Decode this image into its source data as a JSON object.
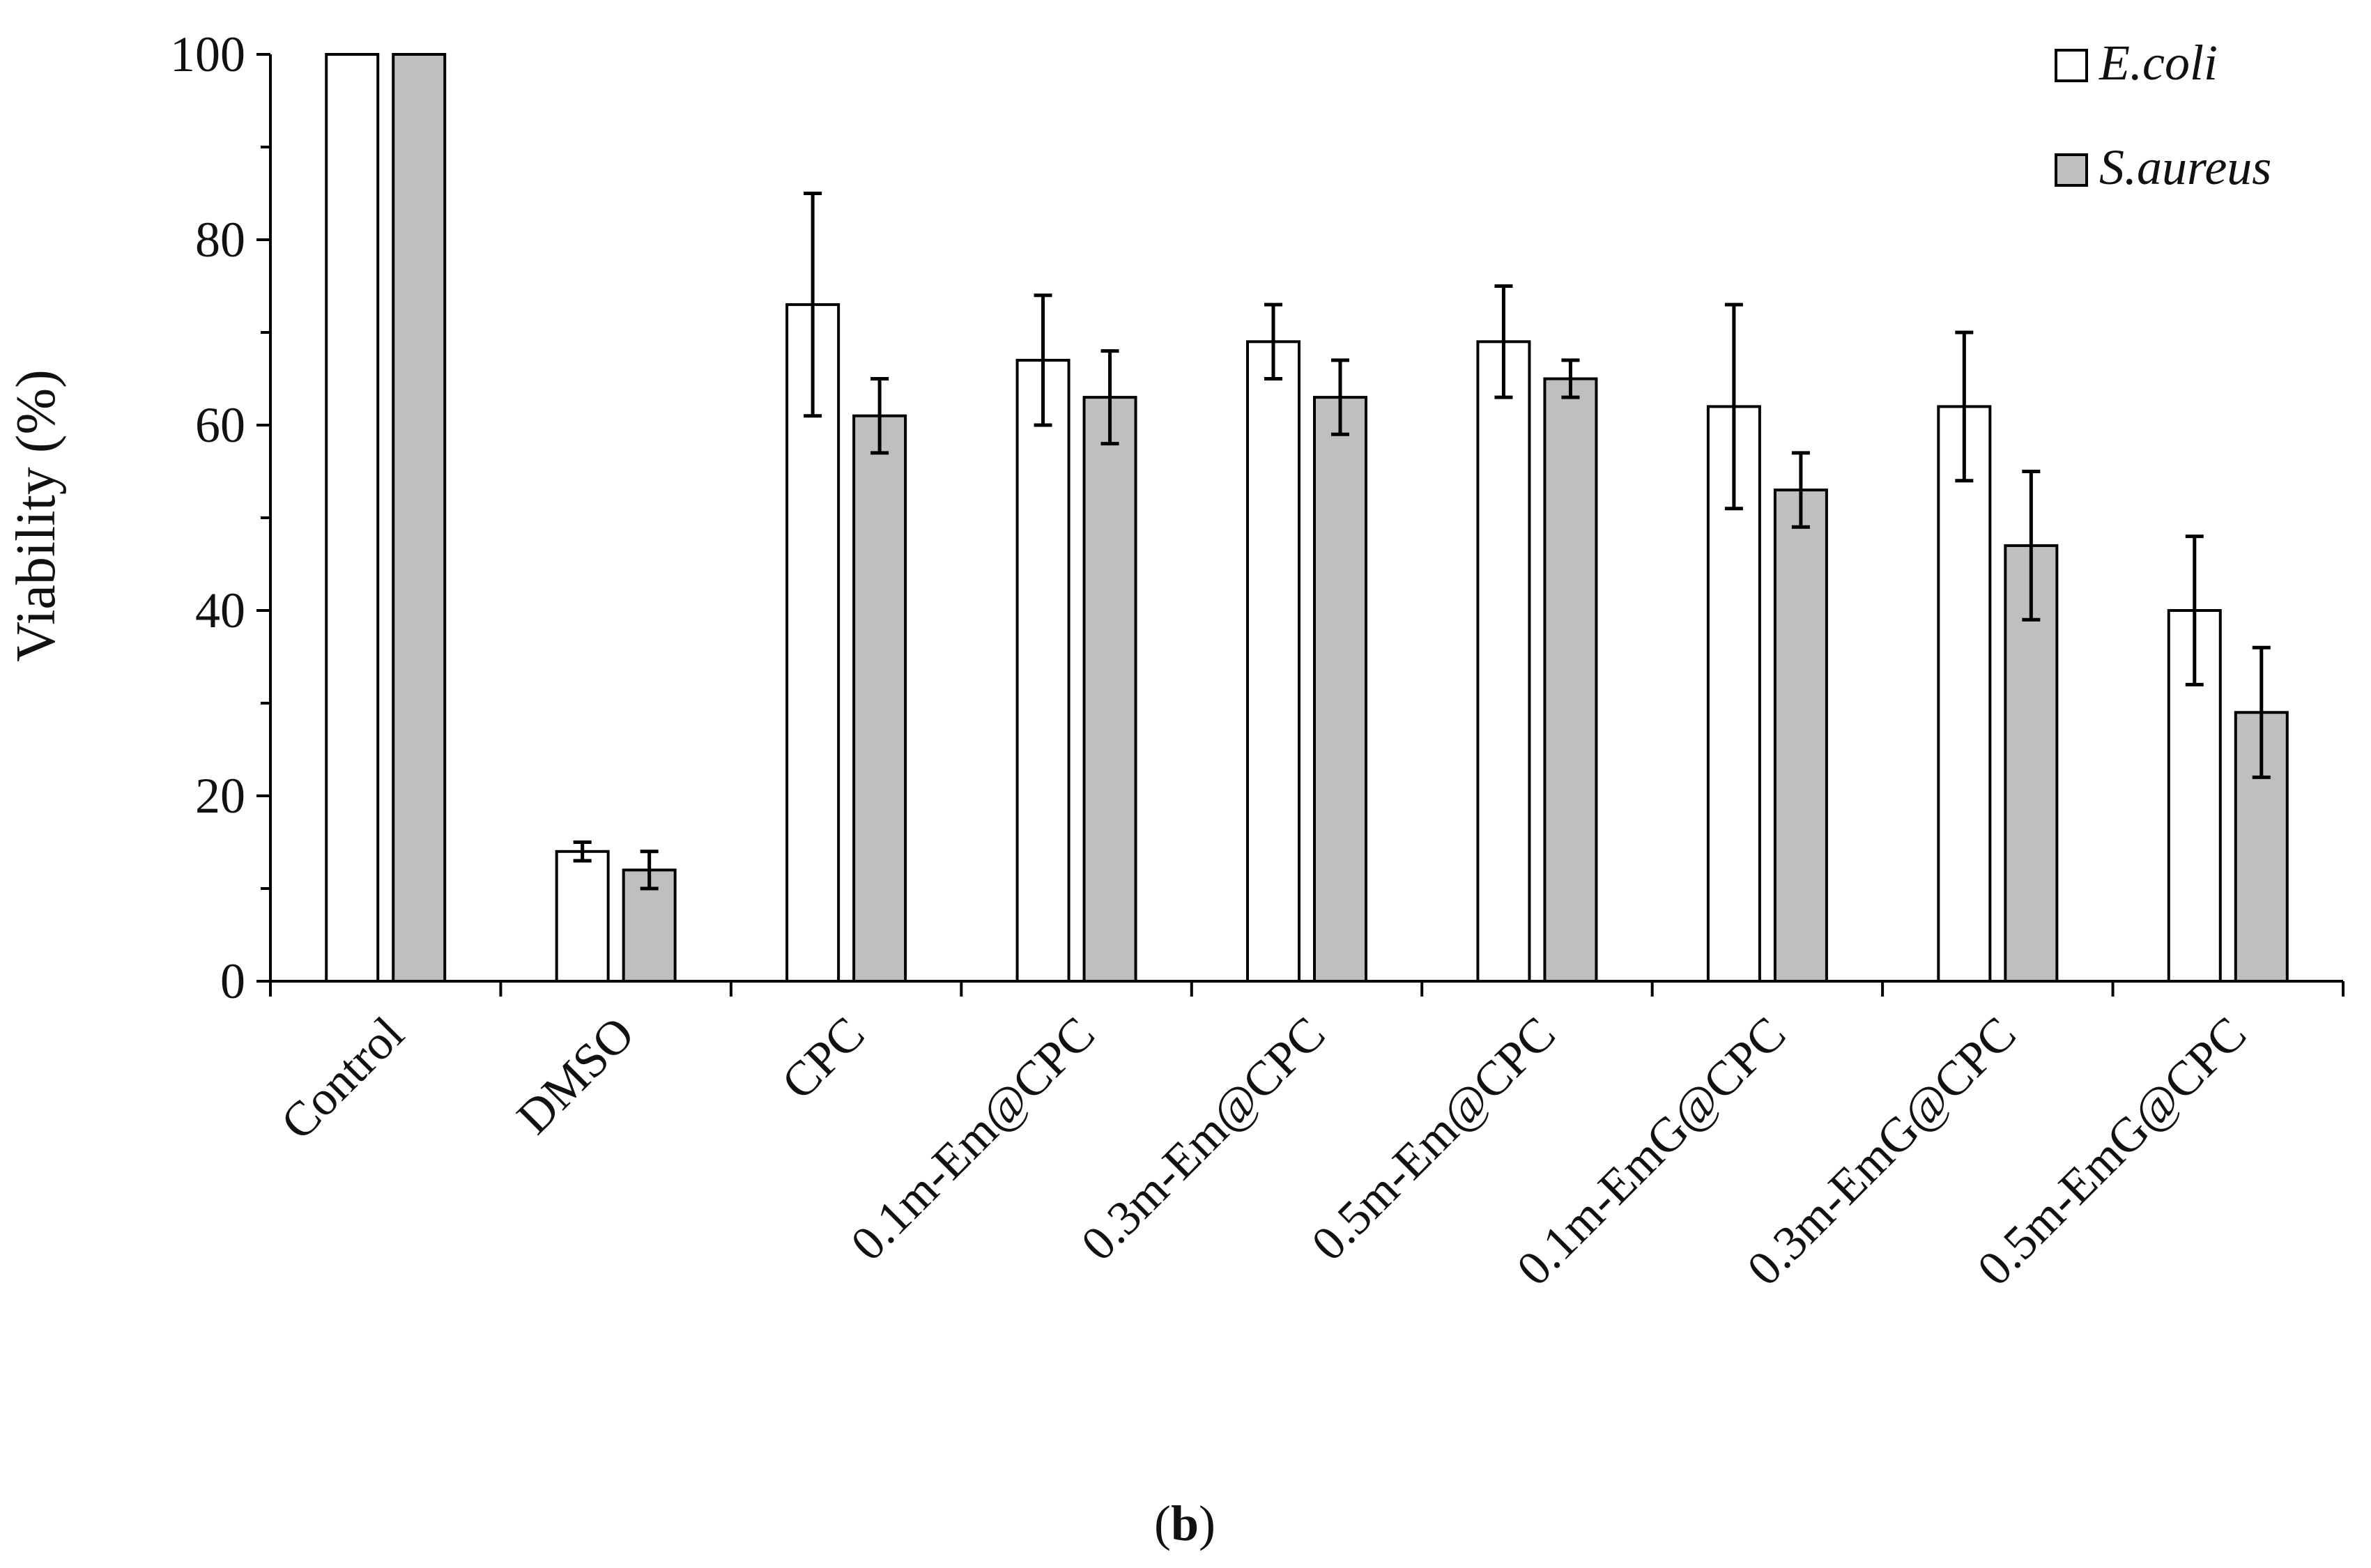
{
  "chart_data": {
    "type": "bar",
    "ylabel": "Viability (%)",
    "xlabel": "",
    "ylim": [
      0,
      100
    ],
    "yticks": [
      0,
      20,
      40,
      60,
      80,
      100
    ],
    "grid": false,
    "legend_position": "top-right",
    "categories": [
      "Control",
      "DMSO",
      "CPC",
      "0.1m-Em@CPC",
      "0.3m-Em@CPC",
      "0.5m-Em@CPC",
      "0.1m-EmG@CPC",
      "0.3m-EmG@CPC",
      "0.5m-EmG@CPC"
    ],
    "series": [
      {
        "name": "E.coli",
        "color": "#ffffff",
        "values": [
          100,
          14,
          73,
          67,
          69,
          69,
          62,
          62,
          40
        ],
        "errors": [
          0,
          1,
          12,
          7,
          4,
          6,
          11,
          8,
          8
        ]
      },
      {
        "name": "S.aureus",
        "color": "#bfbfbf",
        "values": [
          100,
          12,
          61,
          63,
          63,
          65,
          53,
          47,
          29
        ],
        "errors": [
          0,
          2,
          4,
          5,
          4,
          2,
          4,
          8,
          7
        ]
      }
    ]
  },
  "caption": {
    "open": "(",
    "label": "b",
    "close": ")"
  }
}
